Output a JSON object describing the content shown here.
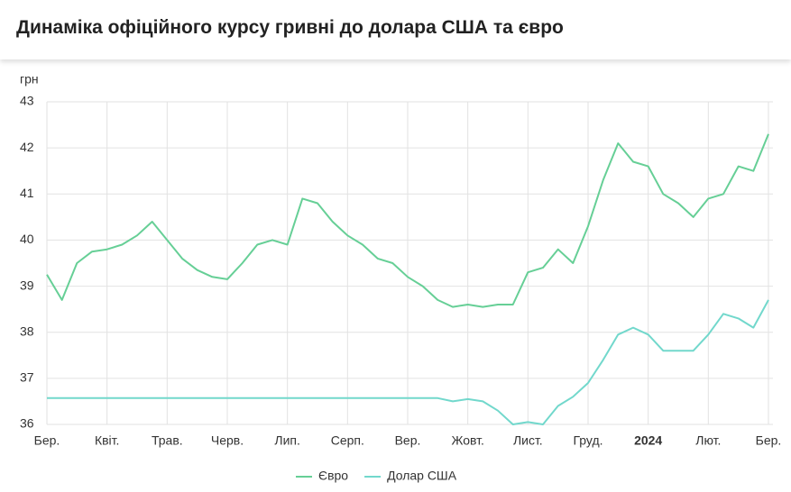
{
  "chart_data": {
    "type": "line",
    "title": "Динаміка офіційного курсу гривні до долара США та євро",
    "y_label": "грн",
    "categories": [
      "Бер.",
      null,
      null,
      null,
      "Квіт.",
      null,
      null,
      null,
      "Трав.",
      null,
      null,
      null,
      "Черв.",
      null,
      null,
      null,
      "Лип.",
      null,
      null,
      null,
      "Серп.",
      null,
      null,
      null,
      "Вер.",
      null,
      null,
      null,
      "Жовт.",
      null,
      null,
      null,
      "Лист.",
      null,
      null,
      null,
      "Груд.",
      null,
      null,
      null,
      "2024",
      null,
      null,
      null,
      "Лют.",
      null,
      null,
      null,
      "Бер."
    ],
    "series": [
      {
        "name": "Євро",
        "color": "#66cf96",
        "values": [
          39.25,
          38.7,
          39.5,
          39.75,
          39.8,
          39.9,
          40.1,
          40.4,
          40.0,
          39.6,
          39.35,
          39.2,
          39.15,
          39.5,
          39.9,
          40.0,
          39.9,
          40.9,
          40.8,
          40.4,
          40.1,
          39.9,
          39.6,
          39.5,
          39.2,
          39.0,
          38.7,
          38.55,
          38.6,
          38.55,
          38.6,
          38.6,
          39.3,
          39.4,
          39.8,
          39.5,
          40.3,
          41.3,
          42.1,
          41.7,
          41.6,
          41.0,
          40.8,
          40.5,
          40.9,
          41.0,
          41.6,
          41.5,
          42.3
        ]
      },
      {
        "name": "Долар США",
        "color": "#72d8cc",
        "values": [
          36.57,
          36.57,
          36.57,
          36.57,
          36.57,
          36.57,
          36.57,
          36.57,
          36.57,
          36.57,
          36.57,
          36.57,
          36.57,
          36.57,
          36.57,
          36.57,
          36.57,
          36.57,
          36.57,
          36.57,
          36.57,
          36.57,
          36.57,
          36.57,
          36.57,
          36.57,
          36.57,
          36.5,
          36.55,
          36.5,
          36.3,
          36.0,
          36.05,
          36.0,
          36.4,
          36.6,
          36.9,
          37.4,
          37.95,
          38.1,
          37.95,
          37.6,
          37.6,
          37.6,
          37.95,
          38.4,
          38.3,
          38.1,
          38.7
        ]
      }
    ],
    "ylim": [
      36,
      43
    ],
    "yticks": [
      36,
      37,
      38,
      39,
      40,
      41,
      42,
      43
    ],
    "grid": true,
    "legend": "bottom"
  }
}
